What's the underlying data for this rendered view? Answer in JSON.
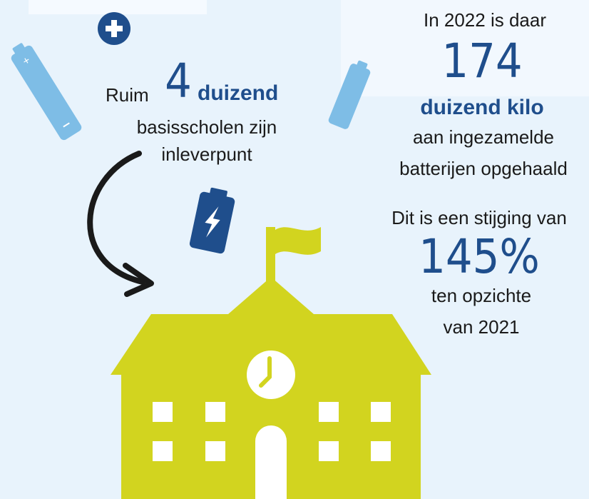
{
  "left": {
    "prefix": "Ruim",
    "number": "4",
    "unit": "duizend",
    "line2": "basisscholen zijn",
    "line3": "inleverpunt"
  },
  "right": {
    "line1": "In 2022 is daar",
    "number": "174",
    "unit": "duizend kilo",
    "line2": "aan ingezamelde",
    "line3": "batterijen opgehaald",
    "line4": "Dit is een stijging van",
    "percent": "145%",
    "line5": "ten opzichte",
    "line6": "van 2021"
  }
}
